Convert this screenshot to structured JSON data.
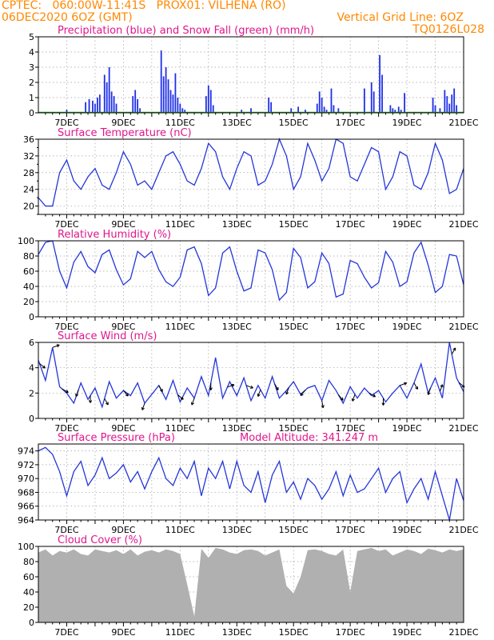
{
  "header": {
    "line1_left": "CPTEC:   060:00W-11:41S   PROX01: VILHENA (RO)",
    "line2_left": "06DEC2020 6OZ (GMT)",
    "line2_right": "Vertical Grid Line: 6OZ",
    "code": "TQ0126L028"
  },
  "colors": {
    "header_text": "#ff8800",
    "panel_title": "#e0168e",
    "series_line": "#2436d8",
    "precip_bar": "#1f2fe8",
    "snow_line": "#22aa22",
    "cloud_fill": "#b0b0b0",
    "grid": "#a0a0a0",
    "wind_arrow": "#000000"
  },
  "chart_data": [
    {
      "id": "precip",
      "type": "bar",
      "title": "Precipitation (blue) and Snow Fall (green) (mm/h)",
      "x_tick_labels": [
        "7DEC",
        "9DEC",
        "11DEC",
        "13DEC",
        "15DEC",
        "17DEC",
        "19DEC",
        "21DEC"
      ],
      "ylim": [
        0,
        5
      ],
      "yticks": [
        0,
        1,
        2,
        3,
        4,
        5
      ],
      "hour_range": [
        0,
        360
      ],
      "bar_hours": [
        24,
        40,
        43,
        46,
        48,
        50,
        52,
        56,
        58,
        60,
        62,
        64,
        66,
        80,
        82,
        84,
        86,
        104,
        106,
        108,
        110,
        112,
        114,
        116,
        118,
        120,
        122,
        124,
        142,
        144,
        146,
        148,
        172,
        180,
        195,
        197,
        214,
        220,
        226,
        236,
        238,
        240,
        242,
        244,
        248,
        250,
        254,
        276,
        282,
        284,
        289,
        291,
        298,
        300,
        302,
        305,
        307,
        310,
        334,
        336,
        340,
        344,
        346,
        348,
        350,
        352,
        354
      ],
      "bar_values": [
        0.2,
        0.7,
        0.9,
        0.8,
        0.6,
        1.0,
        1.2,
        2.5,
        2.0,
        3.0,
        1.4,
        1.1,
        0.6,
        1.1,
        1.5,
        0.9,
        0.3,
        4.1,
        2.4,
        3.0,
        2.2,
        1.5,
        1.2,
        2.6,
        1.0,
        0.6,
        0.3,
        0.2,
        1.1,
        1.8,
        1.5,
        0.5,
        0.2,
        0.3,
        1.0,
        0.7,
        0.3,
        0.4,
        0.2,
        0.6,
        1.4,
        1.0,
        0.4,
        0.2,
        1.6,
        0.5,
        0.3,
        1.6,
        2.0,
        1.4,
        3.8,
        2.5,
        0.5,
        0.3,
        0.2,
        0.4,
        0.2,
        1.3,
        1.0,
        0.5,
        0.3,
        1.5,
        1.1,
        0.6,
        1.2,
        1.6,
        0.5
      ],
      "snow_values": [
        0
      ]
    },
    {
      "id": "temp",
      "type": "line",
      "title": "Surface Temperature (nC)",
      "x_tick_labels": [
        "7DEC",
        "9DEC",
        "11DEC",
        "13DEC",
        "15DEC",
        "17DEC",
        "19DEC",
        "21DEC"
      ],
      "ylim": [
        18,
        36
      ],
      "yticks": [
        20,
        24,
        28,
        32,
        36
      ],
      "hour_range": [
        0,
        360
      ],
      "x_hours": [
        0,
        6,
        12,
        18,
        24,
        30,
        36,
        42,
        48,
        54,
        60,
        66,
        72,
        78,
        84,
        90,
        96,
        102,
        108,
        114,
        120,
        126,
        132,
        138,
        144,
        150,
        156,
        162,
        168,
        174,
        180,
        186,
        192,
        198,
        204,
        210,
        216,
        222,
        228,
        234,
        240,
        246,
        252,
        258,
        264,
        270,
        276,
        282,
        288,
        294,
        300,
        306,
        312,
        318,
        324,
        330,
        336,
        342,
        348,
        354,
        360
      ],
      "values": [
        22,
        20,
        20,
        28,
        31,
        26,
        24,
        27,
        29,
        25,
        24,
        28,
        33,
        30,
        25,
        26,
        24,
        28,
        32,
        33,
        30,
        26,
        25,
        29,
        35,
        33,
        27,
        24,
        29,
        33,
        32,
        25,
        26,
        30,
        36,
        32,
        24,
        27,
        35,
        31,
        26,
        29,
        36,
        35,
        27,
        26,
        30,
        34,
        33,
        24,
        27,
        33,
        32,
        25,
        24,
        28,
        35,
        31,
        23,
        24,
        29
      ],
      "y_minor_ticks": [
        18,
        22,
        26,
        30,
        34
      ]
    },
    {
      "id": "rh",
      "type": "line",
      "title": "Relative Humidity (%)",
      "x_tick_labels": [
        "7DEC",
        "9DEC",
        "11DEC",
        "13DEC",
        "15DEC",
        "17DEC",
        "19DEC",
        "21DEC"
      ],
      "ylim": [
        0,
        100
      ],
      "yticks": [
        0,
        20,
        40,
        60,
        80,
        100
      ],
      "hour_range": [
        0,
        360
      ],
      "x_hours": [
        0,
        6,
        12,
        18,
        24,
        30,
        36,
        42,
        48,
        54,
        60,
        66,
        72,
        78,
        84,
        90,
        96,
        102,
        108,
        114,
        120,
        126,
        132,
        138,
        144,
        150,
        156,
        162,
        168,
        174,
        180,
        186,
        192,
        198,
        204,
        210,
        216,
        222,
        228,
        234,
        240,
        246,
        252,
        258,
        264,
        270,
        276,
        282,
        288,
        294,
        300,
        306,
        312,
        318,
        324,
        330,
        336,
        342,
        348,
        354,
        360
      ],
      "values": [
        82,
        98,
        100,
        60,
        38,
        72,
        86,
        66,
        58,
        82,
        88,
        62,
        42,
        50,
        86,
        78,
        86,
        62,
        46,
        40,
        52,
        88,
        92,
        70,
        28,
        38,
        84,
        92,
        60,
        34,
        38,
        88,
        84,
        62,
        22,
        32,
        90,
        78,
        38,
        46,
        84,
        70,
        26,
        30,
        74,
        70,
        52,
        38,
        45,
        86,
        72,
        40,
        46,
        84,
        98,
        68,
        32,
        40,
        82,
        80,
        42
      ]
    },
    {
      "id": "wind",
      "type": "line",
      "title": "Surface Wind (m/s)",
      "x_tick_labels": [
        "7DEC",
        "9DEC",
        "11DEC",
        "13DEC",
        "15DEC",
        "17DEC",
        "19DEC",
        "21DEC"
      ],
      "ylim": [
        0,
        6
      ],
      "yticks": [
        0,
        2,
        4,
        6
      ],
      "hour_range": [
        0,
        360
      ],
      "x_hours": [
        0,
        6,
        12,
        18,
        24,
        30,
        36,
        42,
        48,
        54,
        60,
        66,
        72,
        78,
        84,
        90,
        96,
        102,
        108,
        114,
        120,
        126,
        132,
        138,
        144,
        150,
        156,
        162,
        168,
        174,
        180,
        186,
        192,
        198,
        204,
        210,
        216,
        222,
        228,
        234,
        240,
        246,
        252,
        258,
        264,
        270,
        276,
        282,
        288,
        294,
        300,
        306,
        312,
        318,
        324,
        330,
        336,
        342,
        348,
        354,
        360
      ],
      "values": [
        4.6,
        3.0,
        5.6,
        2.5,
        2.0,
        1.2,
        2.8,
        1.5,
        2.4,
        0.9,
        2.9,
        1.6,
        2.2,
        1.8,
        2.8,
        1.2,
        1.9,
        2.6,
        1.5,
        3.0,
        1.3,
        2.4,
        1.6,
        3.3,
        1.8,
        4.8,
        1.6,
        2.9,
        1.8,
        3.2,
        1.4,
        2.6,
        1.6,
        3.3,
        1.6,
        2.2,
        2.9,
        1.9,
        2.4,
        2.6,
        1.4,
        3.0,
        2.2,
        1.2,
        2.5,
        1.6,
        2.4,
        1.8,
        2.2,
        1.3,
        2.0,
        2.6,
        1.6,
        2.8,
        4.3,
        2.0,
        3.2,
        1.6,
        6.0,
        3.2,
        2.1
      ],
      "arrow_hours": [
        1,
        12,
        20,
        34,
        44,
        56,
        72,
        90,
        102,
        118,
        132,
        146,
        160,
        176,
        188,
        200,
        212,
        226,
        240,
        254,
        268,
        280,
        292,
        306,
        318,
        332,
        340,
        350,
        356
      ],
      "arrow_dirs_deg": [
        320,
        20,
        330,
        250,
        270,
        300,
        310,
        250,
        300,
        320,
        250,
        270,
        20,
        340,
        250,
        300,
        250,
        230,
        280,
        310,
        250,
        330,
        270,
        20,
        300,
        250,
        70,
        60,
        320
      ]
    },
    {
      "id": "pres",
      "type": "line",
      "title": "Surface Pressure (hPa)",
      "annotation": "Model Altitude: 341.247 m",
      "x_tick_labels": [
        "7DEC",
        "9DEC",
        "11DEC",
        "13DEC",
        "15DEC",
        "17DEC",
        "19DEC",
        "21DEC"
      ],
      "ylim": [
        964,
        975
      ],
      "yticks": [
        964,
        966,
        968,
        970,
        972,
        974
      ],
      "hour_range": [
        0,
        360
      ],
      "x_hours": [
        0,
        6,
        12,
        18,
        24,
        30,
        36,
        42,
        48,
        54,
        60,
        66,
        72,
        78,
        84,
        90,
        96,
        102,
        108,
        114,
        120,
        126,
        132,
        138,
        144,
        150,
        156,
        162,
        168,
        174,
        180,
        186,
        192,
        198,
        204,
        210,
        216,
        222,
        228,
        234,
        240,
        246,
        252,
        258,
        264,
        270,
        276,
        282,
        288,
        294,
        300,
        306,
        312,
        318,
        324,
        330,
        336,
        342,
        348,
        354,
        360
      ],
      "values": [
        974,
        974.5,
        973.5,
        971,
        967.5,
        971,
        972.5,
        969,
        970.5,
        973,
        970,
        970.8,
        972,
        969.5,
        971,
        968.5,
        971,
        973,
        970,
        969,
        971.5,
        970,
        972.5,
        967.5,
        971.5,
        970,
        972.5,
        968.5,
        972.5,
        969,
        968,
        971,
        966.5,
        970.5,
        972.5,
        968,
        969.5,
        967,
        970,
        969,
        967,
        968.5,
        971,
        967.5,
        970.5,
        968,
        968.5,
        970,
        971.5,
        968,
        970,
        971,
        966.5,
        968.5,
        970,
        967,
        971,
        967.5,
        964,
        970,
        966.8
      ]
    },
    {
      "id": "cloud",
      "type": "area",
      "title": "Cloud Cover (%)",
      "x_tick_labels": [
        "7DEC",
        "9DEC",
        "11DEC",
        "13DEC",
        "15DEC",
        "17DEC",
        "19DEC",
        "21DEC"
      ],
      "ylim": [
        0,
        100
      ],
      "yticks": [
        0,
        20,
        40,
        60,
        80,
        100
      ],
      "hour_range": [
        0,
        360
      ],
      "x_hours": [
        0,
        6,
        12,
        18,
        24,
        30,
        36,
        42,
        48,
        54,
        60,
        66,
        72,
        78,
        84,
        90,
        96,
        102,
        108,
        114,
        120,
        126,
        132,
        138,
        144,
        150,
        156,
        162,
        168,
        174,
        180,
        186,
        192,
        198,
        204,
        210,
        216,
        222,
        228,
        234,
        240,
        246,
        252,
        258,
        264,
        270,
        276,
        282,
        288,
        294,
        300,
        306,
        312,
        318,
        324,
        330,
        336,
        342,
        348,
        354,
        360
      ],
      "values": [
        92,
        96,
        88,
        94,
        92,
        96,
        90,
        88,
        96,
        94,
        92,
        95,
        90,
        96,
        88,
        93,
        95,
        92,
        96,
        94,
        90,
        50,
        8,
        97,
        85,
        98,
        96,
        92,
        90,
        95,
        96,
        94,
        88,
        92,
        96,
        48,
        38,
        60,
        95,
        96,
        94,
        90,
        88,
        96,
        40,
        94,
        96,
        98,
        94,
        96,
        88,
        92,
        96,
        94,
        90,
        97,
        95,
        92,
        96,
        94,
        96
      ]
    }
  ]
}
